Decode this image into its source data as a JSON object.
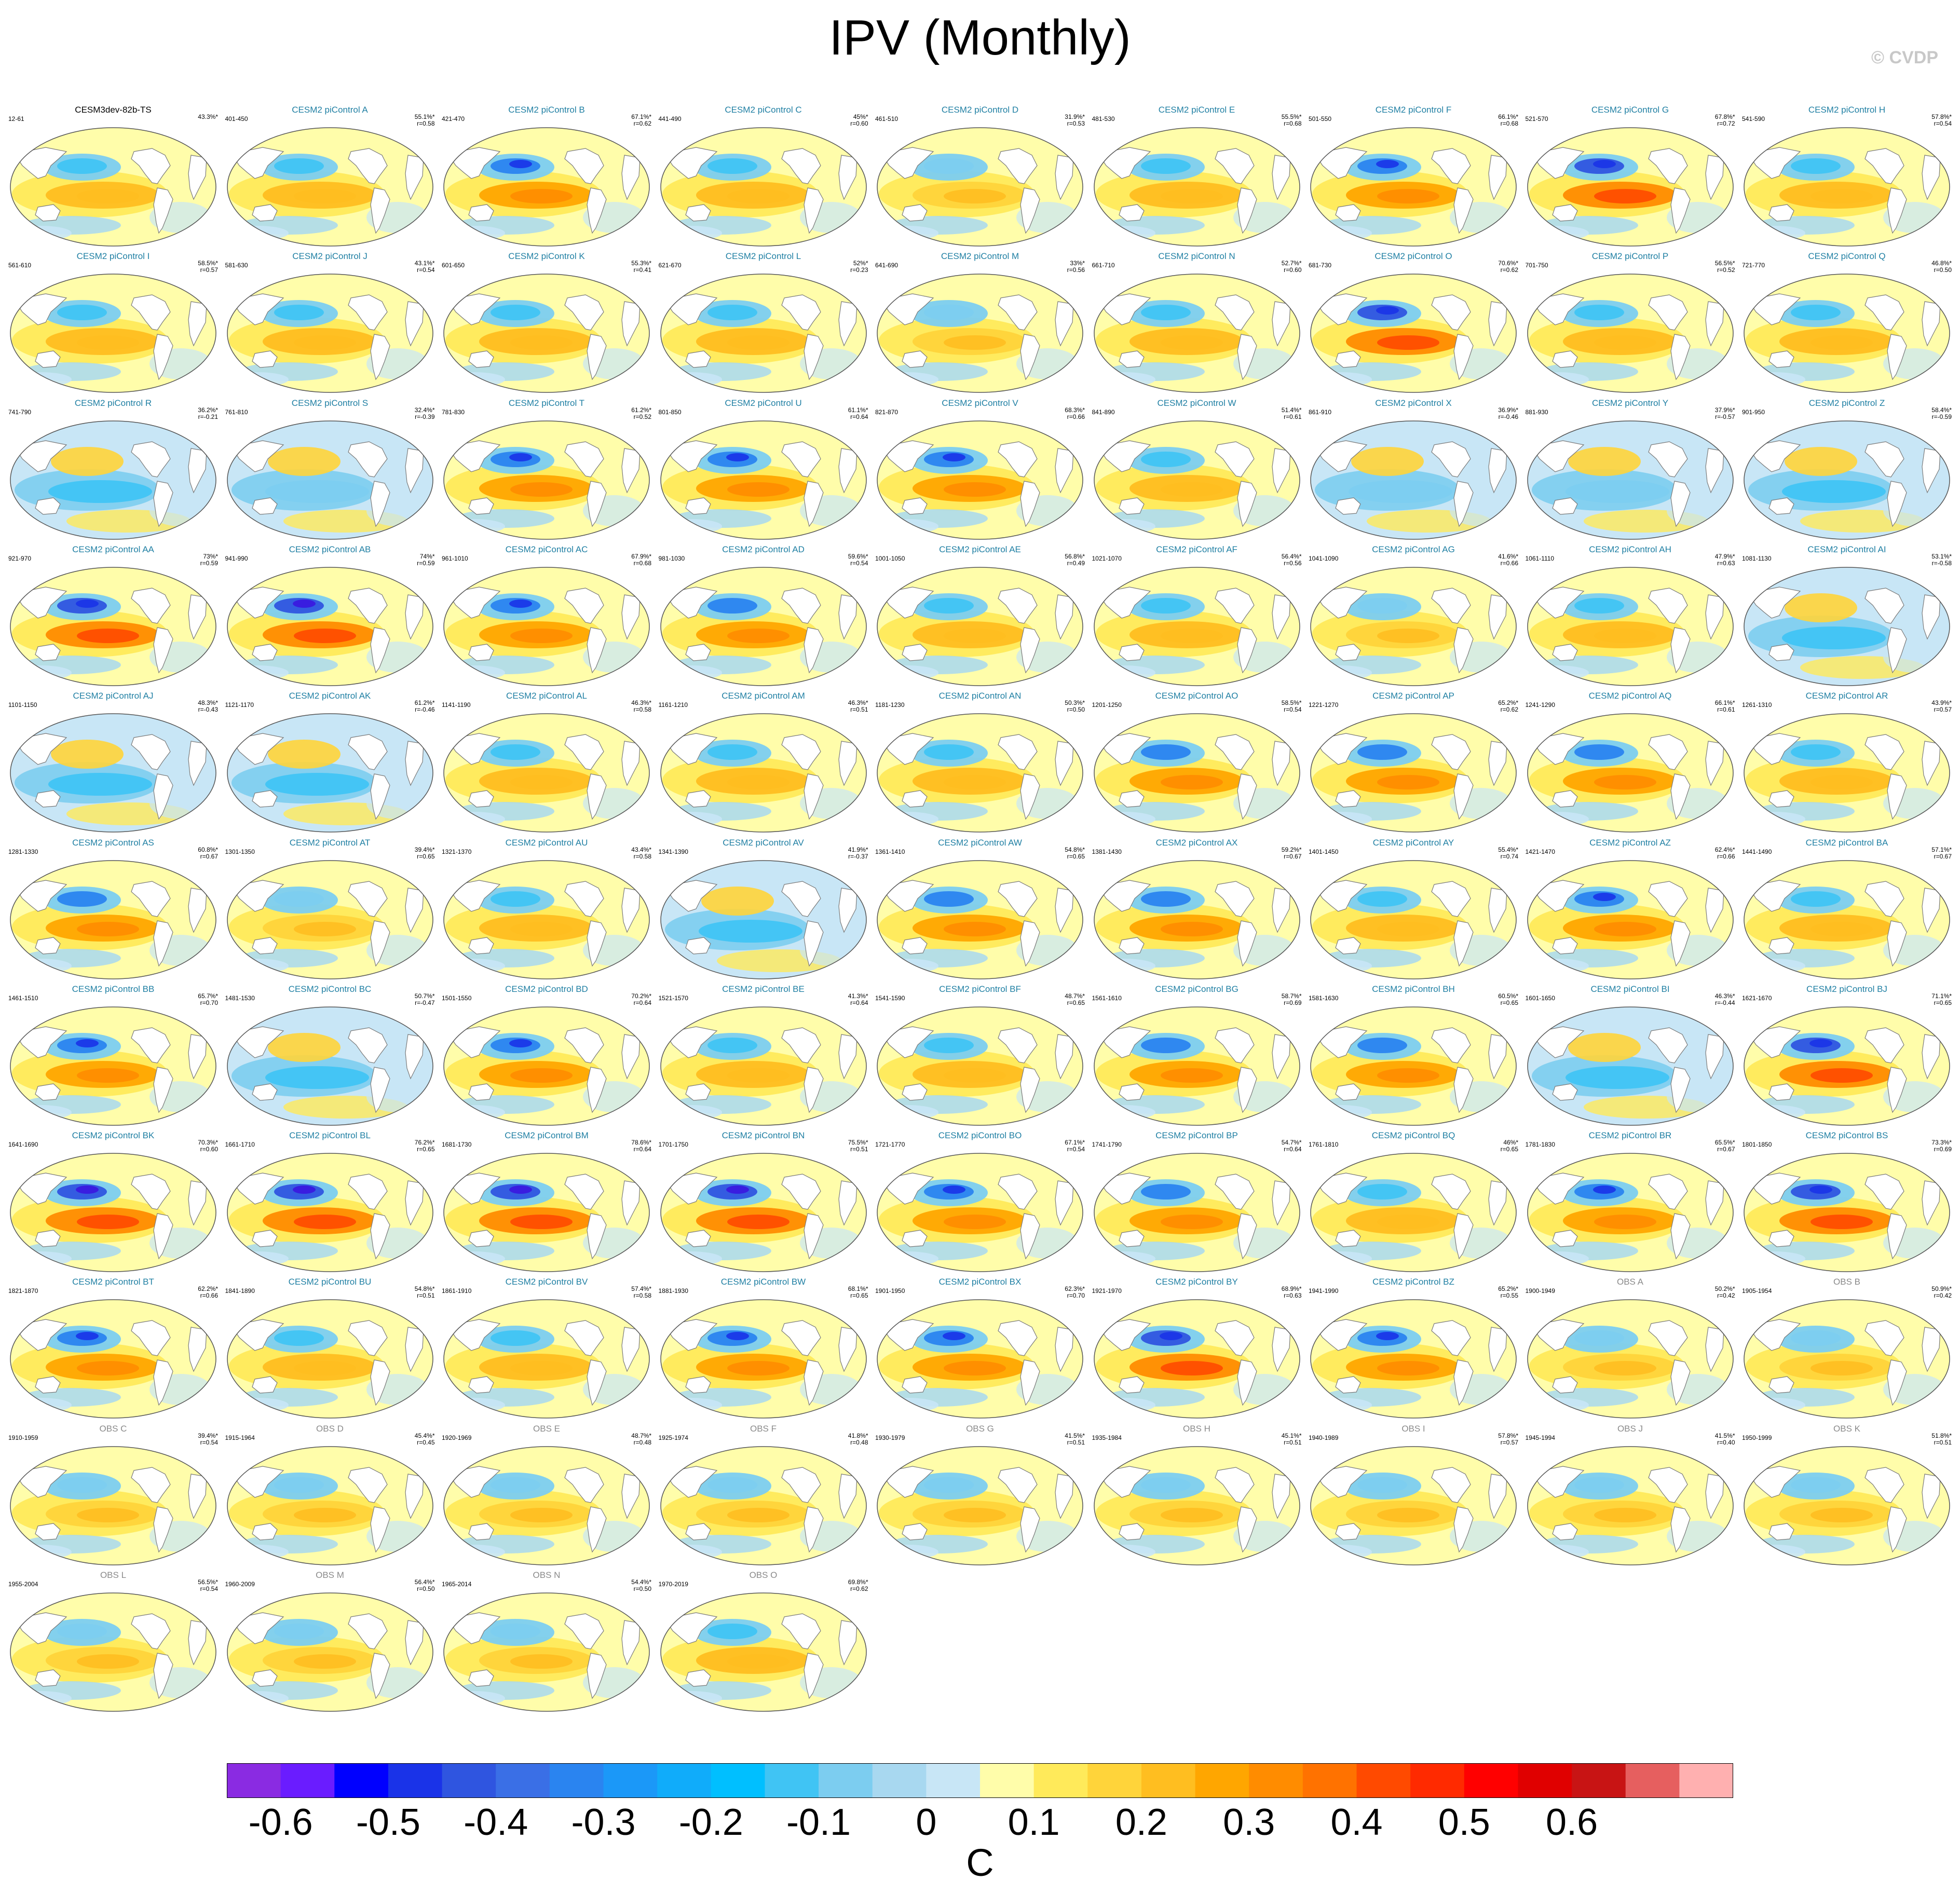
{
  "title": "IPV (Monthly)",
  "copyright": "© CVDP",
  "panels": [
    {
      "label": "CESM3dev-82b-TS",
      "years": "12-61",
      "pct": "43.3%*",
      "r": "",
      "kind": "ref",
      "amp": 0.55
    },
    {
      "label": "CESM2 piControl A",
      "years": "401-450",
      "pct": "55.1%*",
      "r": "r=0.58",
      "kind": "model",
      "amp": 0.5
    },
    {
      "label": "CESM2 piControl B",
      "years": "421-470",
      "pct": "67.1%*",
      "r": "r=0.62",
      "kind": "model",
      "amp": 0.7
    },
    {
      "label": "CESM2 piControl C",
      "years": "441-490",
      "pct": "45%*",
      "r": "r=0.60",
      "kind": "model",
      "amp": 0.45
    },
    {
      "label": "CESM2 piControl D",
      "years": "461-510",
      "pct": "31.9%*",
      "r": "r=0.53",
      "kind": "model",
      "amp": 0.3
    },
    {
      "label": "CESM2 piControl E",
      "years": "481-530",
      "pct": "55.5%*",
      "r": "r=0.68",
      "kind": "model",
      "amp": 0.5
    },
    {
      "label": "CESM2 piControl F",
      "years": "501-550",
      "pct": "66.1%*",
      "r": "r=0.68",
      "kind": "model",
      "amp": 0.65
    },
    {
      "label": "CESM2 piControl G",
      "years": "521-570",
      "pct": "67.8%*",
      "r": "r=0.72",
      "kind": "model",
      "amp": 0.75
    },
    {
      "label": "CESM2 piControl H",
      "years": "541-590",
      "pct": "57.8%*",
      "r": "r=0.54",
      "kind": "model",
      "amp": 0.45
    },
    {
      "label": "CESM2 piControl I",
      "years": "561-610",
      "pct": "58.5%*",
      "r": "r=0.57",
      "kind": "model",
      "amp": 0.55
    },
    {
      "label": "CESM2 piControl J",
      "years": "581-630",
      "pct": "43.1%*",
      "r": "r=0.54",
      "kind": "model",
      "amp": 0.45
    },
    {
      "label": "CESM2 piControl K",
      "years": "601-650",
      "pct": "55.3%*",
      "r": "r=0.41",
      "kind": "model",
      "amp": 0.5
    },
    {
      "label": "CESM2 piControl L",
      "years": "621-670",
      "pct": "52%*",
      "r": "r=0.23",
      "kind": "model",
      "amp": 0.5
    },
    {
      "label": "CESM2 piControl M",
      "years": "641-690",
      "pct": "33%*",
      "r": "r=0.56",
      "kind": "model",
      "amp": 0.3
    },
    {
      "label": "CESM2 piControl N",
      "years": "661-710",
      "pct": "52.7%*",
      "r": "r=0.60",
      "kind": "model",
      "amp": 0.5
    },
    {
      "label": "CESM2 piControl O",
      "years": "681-730",
      "pct": "70.6%*",
      "r": "r=0.62",
      "kind": "model",
      "amp": 0.75
    },
    {
      "label": "CESM2 piControl P",
      "years": "701-750",
      "pct": "56.5%*",
      "r": "r=0.52",
      "kind": "model",
      "amp": 0.5
    },
    {
      "label": "CESM2 piControl Q",
      "years": "721-770",
      "pct": "46.8%*",
      "r": "r=0.50",
      "kind": "model",
      "amp": 0.45
    },
    {
      "label": "CESM2 piControl R",
      "years": "741-790",
      "pct": "36.2%*",
      "r": "r=-0.21",
      "kind": "model",
      "amp": 0.45
    },
    {
      "label": "CESM2 piControl S",
      "years": "761-810",
      "pct": "32.4%*",
      "r": "r=-0.39",
      "kind": "model",
      "amp": 0.35
    },
    {
      "label": "CESM2 piControl T",
      "years": "781-830",
      "pct": "61.2%*",
      "r": "r=0.52",
      "kind": "model",
      "amp": 0.65
    },
    {
      "label": "CESM2 piControl U",
      "years": "801-850",
      "pct": "61.1%*",
      "r": "r=0.64",
      "kind": "model",
      "amp": 0.7
    },
    {
      "label": "CESM2 piControl V",
      "years": "821-870",
      "pct": "68.3%*",
      "r": "r=0.66",
      "kind": "model",
      "amp": 0.65
    },
    {
      "label": "CESM2 piControl W",
      "years": "841-890",
      "pct": "51.4%*",
      "r": "r=0.61",
      "kind": "model",
      "amp": 0.45
    },
    {
      "label": "CESM2 piControl X",
      "years": "861-910",
      "pct": "36.9%*",
      "r": "r=-0.46",
      "kind": "model",
      "amp": 0.4
    },
    {
      "label": "CESM2 piControl Y",
      "years": "881-930",
      "pct": "37.9%*",
      "r": "r=-0.57",
      "kind": "model",
      "amp": 0.4
    },
    {
      "label": "CESM2 piControl Z",
      "years": "901-950",
      "pct": "58.4%*",
      "r": "r=-0.59",
      "kind": "model",
      "amp": 0.5
    },
    {
      "label": "CESM2 piControl AA",
      "years": "921-970",
      "pct": "73%*",
      "r": "r=0.59",
      "kind": "model",
      "amp": 0.75
    },
    {
      "label": "CESM2 piControl AB",
      "years": "941-990",
      "pct": "74%*",
      "r": "r=0.59",
      "kind": "model",
      "amp": 0.8
    },
    {
      "label": "CESM2 piControl AC",
      "years": "961-1010",
      "pct": "67.9%*",
      "r": "r=0.68",
      "kind": "model",
      "amp": 0.7
    },
    {
      "label": "CESM2 piControl AD",
      "years": "981-1030",
      "pct": "59.6%*",
      "r": "r=0.54",
      "kind": "model",
      "amp": 0.6
    },
    {
      "label": "CESM2 piControl AE",
      "years": "1001-1050",
      "pct": "56.8%*",
      "r": "r=0.49",
      "kind": "model",
      "amp": 0.5
    },
    {
      "label": "CESM2 piControl AF",
      "years": "1021-1070",
      "pct": "56.4%*",
      "r": "r=0.56",
      "kind": "model",
      "amp": 0.5
    },
    {
      "label": "CESM2 piControl AG",
      "years": "1041-1090",
      "pct": "41.6%*",
      "r": "r=0.66",
      "kind": "model",
      "amp": 0.4
    },
    {
      "label": "CESM2 piControl AH",
      "years": "1061-1110",
      "pct": "47.9%*",
      "r": "r=0.63",
      "kind": "model",
      "amp": 0.45
    },
    {
      "label": "CESM2 piControl AI",
      "years": "1081-1130",
      "pct": "53.1%*",
      "r": "r=-0.58",
      "kind": "model",
      "amp": 0.55
    },
    {
      "label": "CESM2 piControl AJ",
      "years": "1101-1150",
      "pct": "48.3%*",
      "r": "r=-0.43",
      "kind": "model",
      "amp": 0.5
    },
    {
      "label": "CESM2 piControl AK",
      "years": "1121-1170",
      "pct": "61.2%*",
      "r": "r=-0.46",
      "kind": "model",
      "amp": 0.55
    },
    {
      "label": "CESM2 piControl AL",
      "years": "1141-1190",
      "pct": "46.3%*",
      "r": "r=0.58",
      "kind": "model",
      "amp": 0.5
    },
    {
      "label": "CESM2 piControl AM",
      "years": "1161-1210",
      "pct": "46.3%*",
      "r": "r=0.51",
      "kind": "model",
      "amp": 0.45
    },
    {
      "label": "CESM2 piControl AN",
      "years": "1181-1230",
      "pct": "50.3%*",
      "r": "r=0.50",
      "kind": "model",
      "amp": 0.55
    },
    {
      "label": "CESM2 piControl AO",
      "years": "1201-1250",
      "pct": "58.5%*",
      "r": "r=0.54",
      "kind": "model",
      "amp": 0.6
    },
    {
      "label": "CESM2 piControl AP",
      "years": "1221-1270",
      "pct": "65.2%*",
      "r": "r=0.62",
      "kind": "model",
      "amp": 0.6
    },
    {
      "label": "CESM2 piControl AQ",
      "years": "1241-1290",
      "pct": "66.1%*",
      "r": "r=0.61",
      "kind": "model",
      "amp": 0.6
    },
    {
      "label": "CESM2 piControl AR",
      "years": "1261-1310",
      "pct": "43.9%*",
      "r": "r=0.57",
      "kind": "model",
      "amp": 0.5
    },
    {
      "label": "CESM2 piControl AS",
      "years": "1281-1330",
      "pct": "60.8%*",
      "r": "r=0.67",
      "kind": "model",
      "amp": 0.6
    },
    {
      "label": "CESM2 piControl AT",
      "years": "1301-1350",
      "pct": "39.4%*",
      "r": "r=0.65",
      "kind": "model",
      "amp": 0.4
    },
    {
      "label": "CESM2 piControl AU",
      "years": "1321-1370",
      "pct": "43.4%*",
      "r": "r=0.58",
      "kind": "model",
      "amp": 0.5
    },
    {
      "label": "CESM2 piControl AV",
      "years": "1341-1390",
      "pct": "41.9%*",
      "r": "r=-0.37",
      "kind": "model",
      "amp": 0.45
    },
    {
      "label": "CESM2 piControl AW",
      "years": "1361-1410",
      "pct": "54.8%*",
      "r": "r=0.65",
      "kind": "model",
      "amp": 0.6
    },
    {
      "label": "CESM2 piControl AX",
      "years": "1381-1430",
      "pct": "59.2%*",
      "r": "r=0.67",
      "kind": "model",
      "amp": 0.6
    },
    {
      "label": "CESM2 piControl AY",
      "years": "1401-1450",
      "pct": "55.4%*",
      "r": "r=0.74",
      "kind": "model",
      "amp": 0.55
    },
    {
      "label": "CESM2 piControl AZ",
      "years": "1421-1470",
      "pct": "62.4%*",
      "r": "r=0.66",
      "kind": "model",
      "amp": 0.65
    },
    {
      "label": "CESM2 piControl BA",
      "years": "1441-1490",
      "pct": "57.1%*",
      "r": "r=0.67",
      "kind": "model",
      "amp": 0.55
    },
    {
      "label": "CESM2 piControl BB",
      "years": "1461-1510",
      "pct": "65.7%*",
      "r": "r=0.70",
      "kind": "model",
      "amp": 0.65
    },
    {
      "label": "CESM2 piControl BC",
      "years": "1481-1530",
      "pct": "50.7%*",
      "r": "r=-0.47",
      "kind": "model",
      "amp": 0.5
    },
    {
      "label": "CESM2 piControl BD",
      "years": "1501-1550",
      "pct": "70.2%*",
      "r": "r=0.64",
      "kind": "model",
      "amp": 0.7
    },
    {
      "label": "CESM2 piControl BE",
      "years": "1521-1570",
      "pct": "41.3%*",
      "r": "r=0.64",
      "kind": "model",
      "amp": 0.45
    },
    {
      "label": "CESM2 piControl BF",
      "years": "1541-1590",
      "pct": "48.7%*",
      "r": "r=0.65",
      "kind": "model",
      "amp": 0.5
    },
    {
      "label": "CESM2 piControl BG",
      "years": "1561-1610",
      "pct": "58.7%*",
      "r": "r=0.69",
      "kind": "model",
      "amp": 0.6
    },
    {
      "label": "CESM2 piControl BH",
      "years": "1581-1630",
      "pct": "60.5%*",
      "r": "r=0.65",
      "kind": "model",
      "amp": 0.6
    },
    {
      "label": "CESM2 piControl BI",
      "years": "1601-1650",
      "pct": "46.3%*",
      "r": "r=-0.44",
      "kind": "model",
      "amp": 0.45
    },
    {
      "label": "CESM2 piControl BJ",
      "years": "1621-1670",
      "pct": "71.1%*",
      "r": "r=0.65",
      "kind": "model",
      "amp": 0.75
    },
    {
      "label": "CESM2 piControl BK",
      "years": "1641-1690",
      "pct": "70.3%*",
      "r": "r=0.60",
      "kind": "model",
      "amp": 0.8
    },
    {
      "label": "CESM2 piControl BL",
      "years": "1661-1710",
      "pct": "76.2%*",
      "r": "r=0.65",
      "kind": "model",
      "amp": 0.85
    },
    {
      "label": "CESM2 piControl BM",
      "years": "1681-1730",
      "pct": "78.6%*",
      "r": "r=0.64",
      "kind": "model",
      "amp": 0.85
    },
    {
      "label": "CESM2 piControl BN",
      "years": "1701-1750",
      "pct": "75.5%*",
      "r": "r=0.51",
      "kind": "model",
      "amp": 0.8
    },
    {
      "label": "CESM2 piControl BO",
      "years": "1721-1770",
      "pct": "67.1%*",
      "r": "r=0.54",
      "kind": "model",
      "amp": 0.7
    },
    {
      "label": "CESM2 piControl BP",
      "years": "1741-1790",
      "pct": "54.7%*",
      "r": "r=0.64",
      "kind": "model",
      "amp": 0.6
    },
    {
      "label": "CESM2 piControl BQ",
      "years": "1761-1810",
      "pct": "46%*",
      "r": "r=0.65",
      "kind": "model",
      "amp": 0.5
    },
    {
      "label": "CESM2 piControl BR",
      "years": "1781-1830",
      "pct": "65.5%*",
      "r": "r=0.67",
      "kind": "model",
      "amp": 0.65
    },
    {
      "label": "CESM2 piControl BS",
      "years": "1801-1850",
      "pct": "73.3%*",
      "r": "r=0.69",
      "kind": "model",
      "amp": 0.75
    },
    {
      "label": "CESM2 piControl BT",
      "years": "1821-1870",
      "pct": "62.2%*",
      "r": "r=0.66",
      "kind": "model",
      "amp": 0.65
    },
    {
      "label": "CESM2 piControl BU",
      "years": "1841-1890",
      "pct": "54.8%*",
      "r": "r=0.51",
      "kind": "model",
      "amp": 0.55
    },
    {
      "label": "CESM2 piControl BV",
      "years": "1861-1910",
      "pct": "57.4%*",
      "r": "r=0.58",
      "kind": "model",
      "amp": 0.55
    },
    {
      "label": "CESM2 piControl BW",
      "years": "1881-1930",
      "pct": "68.1%*",
      "r": "r=0.65",
      "kind": "model",
      "amp": 0.7
    },
    {
      "label": "CESM2 piControl BX",
      "years": "1901-1950",
      "pct": "62.3%*",
      "r": "r=0.70",
      "kind": "model",
      "amp": 0.65
    },
    {
      "label": "CESM2 piControl BY",
      "years": "1921-1970",
      "pct": "68.9%*",
      "r": "r=0.63",
      "kind": "model",
      "amp": 0.75
    },
    {
      "label": "CESM2 piControl BZ",
      "years": "1941-1990",
      "pct": "65.2%*",
      "r": "r=0.55",
      "kind": "model",
      "amp": 0.65
    },
    {
      "label": "OBS A",
      "years": "1900-1949",
      "pct": "50.2%*",
      "r": "r=0.42",
      "kind": "obs",
      "amp": 0.35
    },
    {
      "label": "OBS B",
      "years": "1905-1954",
      "pct": "50.9%*",
      "r": "r=0.42",
      "kind": "obs",
      "amp": 0.35
    },
    {
      "label": "OBS C",
      "years": "1910-1959",
      "pct": "39.4%*",
      "r": "r=0.54",
      "kind": "obs",
      "amp": 0.3
    },
    {
      "label": "OBS D",
      "years": "1915-1964",
      "pct": "45.4%*",
      "r": "r=0.45",
      "kind": "obs",
      "amp": 0.3
    },
    {
      "label": "OBS E",
      "years": "1920-1969",
      "pct": "48.7%*",
      "r": "r=0.48",
      "kind": "obs",
      "amp": 0.35
    },
    {
      "label": "OBS F",
      "years": "1925-1974",
      "pct": "41.8%*",
      "r": "r=0.48",
      "kind": "obs",
      "amp": 0.3
    },
    {
      "label": "OBS G",
      "years": "1930-1979",
      "pct": "41.5%*",
      "r": "r=0.51",
      "kind": "obs",
      "amp": 0.3
    },
    {
      "label": "OBS H",
      "years": "1935-1984",
      "pct": "45.1%*",
      "r": "r=0.51",
      "kind": "obs",
      "amp": 0.3
    },
    {
      "label": "OBS I",
      "years": "1940-1989",
      "pct": "57.8%*",
      "r": "r=0.57",
      "kind": "obs",
      "amp": 0.35
    },
    {
      "label": "OBS J",
      "years": "1945-1994",
      "pct": "41.5%*",
      "r": "r=0.40",
      "kind": "obs",
      "amp": 0.3
    },
    {
      "label": "OBS K",
      "years": "1950-1999",
      "pct": "51.8%*",
      "r": "r=0.51",
      "kind": "obs",
      "amp": 0.3
    },
    {
      "label": "OBS L",
      "years": "1955-2004",
      "pct": "56.5%*",
      "r": "r=0.54",
      "kind": "obs",
      "amp": 0.4
    },
    {
      "label": "OBS M",
      "years": "1960-2009",
      "pct": "56.4%*",
      "r": "r=0.50",
      "kind": "obs",
      "amp": 0.4
    },
    {
      "label": "OBS N",
      "years": "1965-2014",
      "pct": "54.4%*",
      "r": "r=0.50",
      "kind": "obs",
      "amp": 0.4
    },
    {
      "label": "OBS O",
      "years": "1970-2019",
      "pct": "69.8%*",
      "r": "r=0.62",
      "kind": "obs",
      "amp": 0.55
    }
  ],
  "colorbar": {
    "colors": [
      "#8a2be2",
      "#6a1cff",
      "#0000ff",
      "#1a33e8",
      "#2f55e0",
      "#3a6fe6",
      "#2a84f0",
      "#1b98f8",
      "#10acfa",
      "#00bfff",
      "#40c4f4",
      "#7ccdf0",
      "#a8d8f0",
      "#c8e6f6",
      "#fffdaa",
      "#ffea5a",
      "#ffd43a",
      "#ffbe20",
      "#ffa600",
      "#ff8c00",
      "#ff7200",
      "#ff4a00",
      "#ff2a00",
      "#ff0000",
      "#e00000",
      "#c81414",
      "#e65f5f",
      "#ffb0b0"
    ],
    "tick_labels": [
      "-0.6",
      "-0.5",
      "-0.4",
      "-0.3",
      "-0.2",
      "-0.1",
      "0",
      "0.1",
      "0.2",
      "0.3",
      "0.4",
      "0.5",
      "0.6"
    ],
    "unit": "C"
  }
}
